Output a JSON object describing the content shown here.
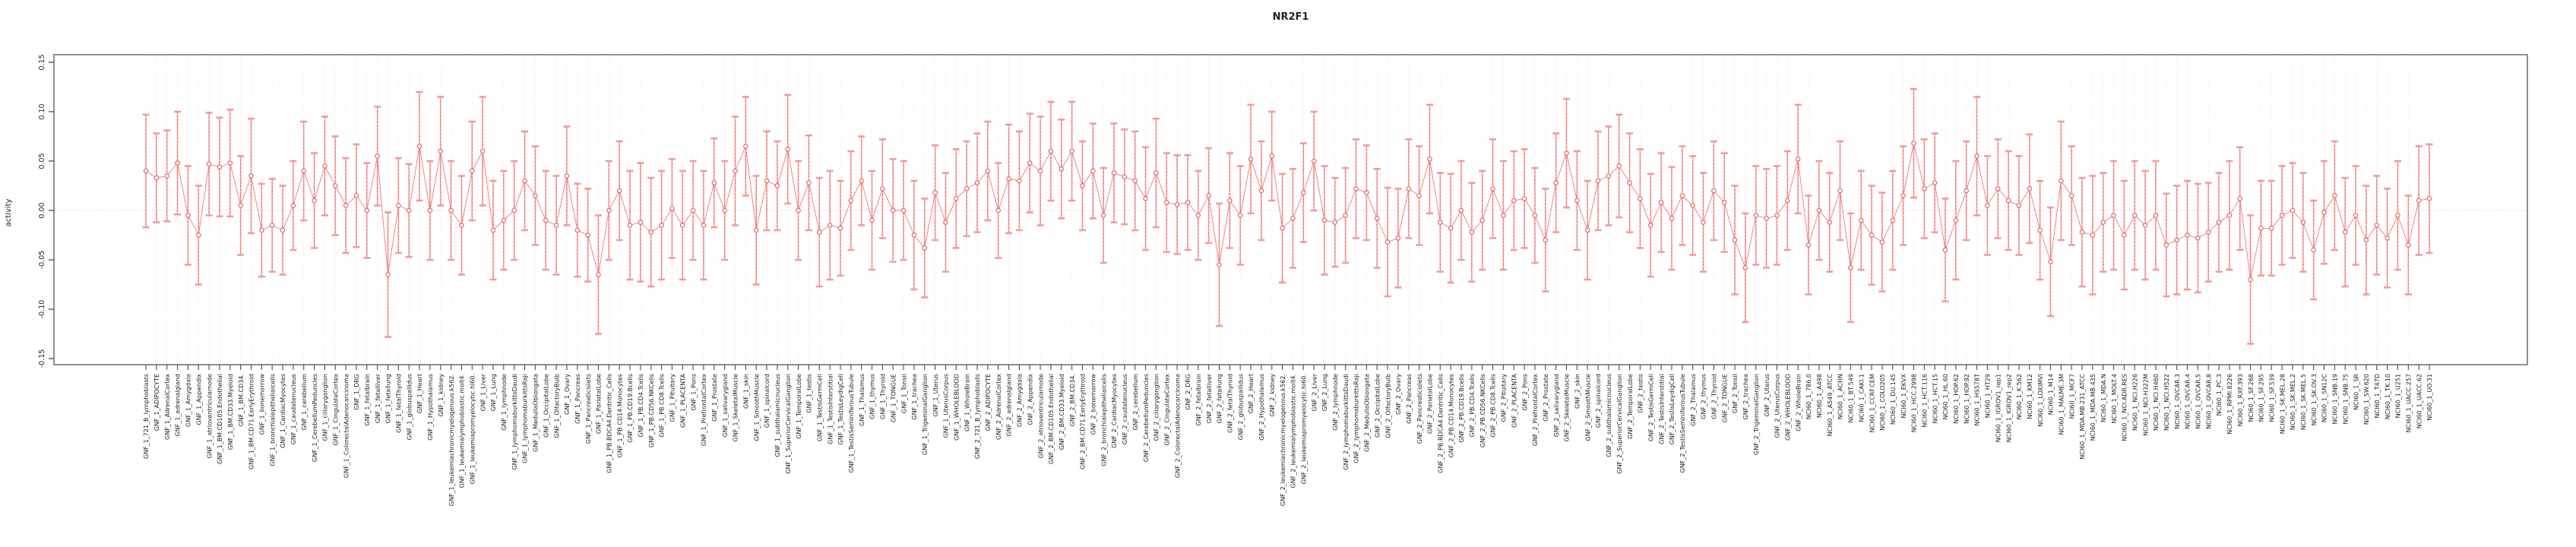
{
  "title": "NR2F1",
  "y_axis": {
    "label": "activity",
    "tick_labels": [
      "-0.15",
      "-0.10",
      "-0.05",
      "0.00",
      "0.05",
      "0.10",
      "0.15"
    ],
    "tick_values": [
      -0.15,
      -0.1,
      -0.05,
      0.0,
      0.05,
      0.1,
      0.15
    ]
  },
  "chart_data": {
    "type": "scatter",
    "subtype": "point-with-confidence-interval-errorbars",
    "title": "NR2F1",
    "xlabel": "",
    "ylabel": "activity",
    "ylim": [
      -0.157,
      0.158
    ],
    "grid": "dotted vertical gridline per category, dotted horizontal line at zero",
    "legend_position": "none",
    "categories": [
      "GNF_1_721_B_lymphoblasts",
      "GNF_1_ADIPOCYTE",
      "GNF_1_AdrenalCortex",
      "GNF_1_adrenalgland",
      "GNF_1_Amygdala",
      "GNF_1_Appendix",
      "GNF_1_atrioventricularnode",
      "GNF_1_BM.CD105.Endothelial",
      "GNF_1_BM.CD33.Myeloid",
      "GNF_1_BM.CD34.",
      "GNF_1_BM.CD71.EarlyErythroid",
      "GNF_1_bonemarrow",
      "GNF_1_bronchialepithelialcells",
      "GNF_1_CardiacMyocytes",
      "GNF_1_caudatenucleus",
      "GNF_1_cerebellum",
      "GNF_1_CerebellumPeduncles",
      "GNF_1_ciliaryganglion",
      "GNF_1_CingulateCortex",
      "GNF_1_ColorectalAdenocarcinoma",
      "GNF_1_DRG",
      "GNF_1_fetalbrain",
      "GNF_1_fetalliver",
      "GNF_1_fetallung",
      "GNF_1_fetalThyroid",
      "GNF_1_globuspallidus",
      "GNF_1_Heart",
      "GNF_1_Hypothalamus",
      "GNF_1_kidney",
      "GNF_1_leukemiachronicmyelogenous.k562.",
      "GNF_1_leukemialymphoblastic.molt4.",
      "GNF_1_leukemiapromyelocytic.hl60.",
      "GNF_1_Liver",
      "GNF_1_Lung",
      "GNF_1_lymphnode",
      "GNF_1_lymphomaburkittsDaudi",
      "GNF_1_lymphomaburkittsRaji",
      "GNF_1_MedullaOblongata",
      "GNF_1_OccipitalLobe",
      "GNF_1_OlfactoryBulb",
      "GNF_1_Ovary",
      "GNF_1_Pancreas",
      "GNF_1_Pancreaticislets",
      "GNF_1_ParietalLobe",
      "GNF_1_PB.BDCA4.Dentritic_Cells",
      "GNF_1_PB.CD14.Monocytes",
      "GNF_1_PB.CD19.Bcells",
      "GNF_1_PB.CD4.Tcells",
      "GNF_1_PB.CD56.NKCells",
      "GNF_1_PB.CD8.Tcells",
      "GNF_1_Pituitary",
      "GNF_1_PLACENTA",
      "GNF_1_Pons",
      "GNF_1_PrefrontalCortex",
      "GNF_1_Prostate",
      "GNF_1_salivarygland",
      "GNF_1_SkeletalMuscle",
      "GNF_1_skin",
      "GNF_1_SmoothMuscle",
      "GNF_1_spinalcord",
      "GNF_1_subthalamicnucleus",
      "GNF_1_SuperiorCervicalGanglion",
      "GNF_1_TemporalLobe",
      "GNF_1_testis",
      "GNF_1_TestisGermCell",
      "GNF_1_TestisInterstitial",
      "GNF_1_TestisLeydigCell",
      "GNF_1_TestisSeminiferousTubule",
      "GNF_1_Thalamus",
      "GNF_1_thymus",
      "GNF_1_Thyroid",
      "GNF_1_TONGUE",
      "GNF_1_Tonsil",
      "GNF_1_trachea",
      "GNF_1_TrigeminalGanglion",
      "GNF_1_Uterus",
      "GNF_1_UterusCorpus",
      "GNF_1_WHOLEBLOOD",
      "GNF_1_WholeBrain",
      "GNF_2_721_B_lymphoblasts",
      "GNF_2_ADIPOCYTE",
      "GNF_2_AdrenalCortex",
      "GNF_2_adrenalgland",
      "GNF_2_Amygdala",
      "GNF_2_Appendix",
      "GNF_2_atrioventricularnode",
      "GNF_2_BM.CD105.Endothelial",
      "GNF_2_BM.CD33.Myeloid",
      "GNF_2_BM.CD34.",
      "GNF_2_BM.CD71.EarlyErythroid",
      "GNF_2_bonemarrow",
      "GNF_2_bronchialepithelialcells",
      "GNF_2_CardiacMyocytes",
      "GNF_2_caudatenucleus",
      "GNF_2_cerebellum",
      "GNF_2_CerebellumPeduncles",
      "GNF_2_ciliaryganglion",
      "GNF_2_CingulateCortex",
      "GNF_2_ColorectalAdenocarcinoma",
      "GNF_2_DRG",
      "GNF_2_fetalbrain",
      "GNF_2_fetalliver",
      "GNF_2_fetallung",
      "GNF_2_fetalThyroid",
      "GNF_2_globuspallidus",
      "GNF_2_Heart",
      "GNF_2_Hypothalamus",
      "GNF_2_kidney",
      "GNF_2_leukemiachronicmyelogenous.k562.",
      "GNF_2_leukemialymphoblastic.molt4.",
      "GNF_2_leukemiapromyelocytic.hl60.",
      "GNF_2_Liver",
      "GNF_2_Lung",
      "GNF_2_lymphnode",
      "GNF_2_lymphomaburkittsDaudi",
      "GNF_2_lymphomaburkittsRaji",
      "GNF_2_MedullaOblongata",
      "GNF_2_OccipitalLobe",
      "GNF_2_OlfactoryBulb",
      "GNF_2_Ovary",
      "GNF_2_Pancreas",
      "GNF_2_Pancreaticislets",
      "GNF_2_ParietalLobe",
      "GNF_2_PB.BDCA4.Dentritic_Cells",
      "GNF_2_PB.CD14.Monocytes",
      "GNF_2_PB.CD19.Bcells",
      "GNF_2_PB.CD4.Tcells",
      "GNF_2_PB.CD56.NKCells",
      "GNF_2_PB.CD8.Tcells",
      "GNF_2_Pituitary",
      "GNF_2_PLACENTA",
      "GNF_2_Pons",
      "GNF_2_PrefrontalCortex",
      "GNF_2_Prostate",
      "GNF_2_salivarygland",
      "GNF_2_SkeletalMuscle",
      "GNF_2_skin",
      "GNF_2_SmoothMuscle",
      "GNF_2_spinalcord",
      "GNF_2_subthalamicnucleus",
      "GNF_2_SuperiorCervicalGanglion",
      "GNF_2_TemporalLobe",
      "GNF_2_testis",
      "GNF_2_TestisGermCell",
      "GNF_2_TestisInterstitial",
      "GNF_2_TestisLeydigCell",
      "GNF_2_TestisSeminiferousTubule",
      "GNF_2_Thalamus",
      "GNF_2_thymus",
      "GNF_2_Thyroid",
      "GNF_2_TONGUE",
      "GNF_2_Tonsil",
      "GNF_2_trachea",
      "GNF_2_TrigeminalGanglion",
      "GNF_2_Uterus",
      "GNF_2_UterusCorpus",
      "GNF_2_WHOLEBLOOD",
      "GNF_2_WholeBrain",
      "NCI60_1_786.0",
      "NCI60_1_A498",
      "NCI60_1_A549_ATCC",
      "NCI60_1_ACHN",
      "NCI60_1_BT.549",
      "NCI60_1_CAKI.1",
      "NCI60_1_CCRF.CEM",
      "NCI60_1_COLO205",
      "NCI60_1_DU.145",
      "NCI60_1_EKVX",
      "NCI60_1_HCC.2998",
      "NCI60_1_HCT.116",
      "NCI60_1_HCT.15",
      "NCI60_1_HL.60",
      "NCI60_1_HOP.62",
      "NCI60_1_HOP.92",
      "NCI60_1_HS578T",
      "NCI60_1_HT29",
      "NCI60_1_IGROV1_rep1",
      "NCI60_1_IGROV1_rep2",
      "NCI60_1_K.562",
      "NCI60_1_KM12",
      "NCI60_1_LOXIMVI",
      "NCI60_1_M14",
      "NCI60_1_MALME.3M",
      "NCI60_1_MCF7",
      "NCI60_1_MDA.MB.231_ATCC",
      "NCI60_1_MDA.MB.435",
      "NCI60_1_MDA.N",
      "NCI60_1_MOLT.4",
      "NCI60_1_NCI.ADR.RES",
      "NCI60_1_NCI.H226",
      "NCI60_1_NCI.H322M",
      "NCI60_1_NCI.H460",
      "NCI60_1_NCI.H522",
      "NCI60_1_OVCAR.3",
      "NCI60_1_OVCAR.4",
      "NCI60_1_OVCAR.5",
      "NCI60_1_OVCAR.8",
      "NCI60_1_PC.3",
      "NCI60_1_RPMI.8226",
      "NCI60_1_RXF.393",
      "NCI60_1_SF.268",
      "NCI60_1_SF.295",
      "NCI60_1_SF.539",
      "NCI60_1_SK.MEL.28",
      "NCI60_1_SK.MEL.2",
      "NCI60_1_SK.MEL.5",
      "NCI60_1_SK.OV.3",
      "NCI60_1_SN12C",
      "NCI60_1_SNB.19",
      "NCI60_1_SNB.75",
      "NCI60_1_SR",
      "NCI60_1_SW.620",
      "NCI60_1_T47D",
      "NCI60_1_TK.10",
      "NCI60_1_U251",
      "NCI60_1_UACC.257",
      "NCI60_1_UACC.62",
      "NCI60_1_UO.31"
    ],
    "series": [
      {
        "name": "activity",
        "values": [
          0.04,
          0.033,
          0.035,
          0.048,
          -0.005,
          -0.025,
          0.047,
          0.044,
          0.048,
          0.005,
          0.035,
          -0.02,
          -0.015,
          -0.02,
          0.005,
          0.04,
          0.01,
          0.045,
          0.025,
          0.005,
          0.015,
          0.0,
          0.055,
          -0.065,
          0.005,
          0.0,
          0.065,
          0.0,
          0.06,
          0.0,
          -0.015,
          0.04,
          0.06,
          -0.02,
          -0.01,
          0.0,
          0.03,
          0.015,
          -0.01,
          -0.015,
          0.035,
          -0.02,
          -0.025,
          -0.065,
          0.0,
          0.02,
          -0.015,
          -0.012,
          -0.022,
          -0.015,
          0.002,
          -0.015,
          0.0,
          -0.015,
          0.028,
          0.0,
          0.04,
          0.065,
          -0.02,
          0.03,
          0.025,
          0.062,
          0.0,
          0.028,
          -0.022,
          -0.015,
          -0.018,
          0.01,
          0.03,
          -0.01,
          0.022,
          0.0,
          0.0,
          -0.025,
          -0.038,
          0.018,
          -0.012,
          0.012,
          0.022,
          0.028,
          0.04,
          0.0,
          0.032,
          0.03,
          0.048,
          0.04,
          0.06,
          0.042,
          0.06,
          0.025,
          0.04,
          -0.005,
          0.038,
          0.034,
          0.03,
          0.012,
          0.038,
          0.008,
          0.006,
          0.008,
          -0.005,
          0.015,
          -0.055,
          0.01,
          -0.005,
          0.052,
          0.02,
          0.055,
          -0.018,
          -0.008,
          0.018,
          0.05,
          -0.01,
          -0.012,
          -0.005,
          0.022,
          0.018,
          -0.008,
          -0.032,
          -0.028,
          0.022,
          0.015,
          0.052,
          -0.012,
          -0.018,
          0.0,
          -0.022,
          -0.01,
          0.022,
          -0.005,
          0.01,
          0.012,
          -0.005,
          -0.03,
          0.028,
          0.058,
          0.01,
          -0.02,
          0.03,
          0.035,
          0.045,
          0.028,
          0.012,
          -0.015,
          0.008,
          -0.008,
          0.015,
          0.005,
          -0.012,
          0.02,
          0.008,
          -0.03,
          -0.058,
          -0.005,
          -0.008,
          -0.005,
          0.01,
          0.052,
          -0.035,
          0.0,
          -0.012,
          0.02,
          -0.058,
          -0.01,
          -0.025,
          -0.032,
          -0.01,
          0.015,
          0.068,
          0.022,
          0.028,
          -0.04,
          -0.01,
          0.02,
          0.055,
          0.005,
          0.022,
          0.01,
          0.005,
          0.022,
          -0.02,
          -0.052,
          0.03,
          0.015,
          -0.022,
          -0.025,
          -0.012,
          -0.005,
          -0.025,
          -0.005,
          -0.015,
          -0.005,
          -0.035,
          -0.03,
          -0.025,
          -0.028,
          -0.022,
          -0.012,
          -0.005,
          0.012,
          -0.07,
          -0.018,
          -0.018,
          -0.005,
          0.0,
          -0.012,
          -0.04,
          -0.002,
          0.015,
          -0.022,
          -0.005,
          -0.03,
          -0.015,
          -0.028,
          -0.005,
          -0.035,
          0.01,
          0.012
        ],
        "ci_halfwidth": [
          0.057,
          0.045,
          0.046,
          0.052,
          0.05,
          0.05,
          0.052,
          0.05,
          0.054,
          0.05,
          0.058,
          0.047,
          0.047,
          0.045,
          0.045,
          0.05,
          0.048,
          0.05,
          0.05,
          0.048,
          0.052,
          0.048,
          0.05,
          0.063,
          0.048,
          0.047,
          0.055,
          0.05,
          0.055,
          0.05,
          0.05,
          0.05,
          0.055,
          0.05,
          0.05,
          0.05,
          0.05,
          0.05,
          0.05,
          0.05,
          0.05,
          0.047,
          0.047,
          0.06,
          0.05,
          0.05,
          0.055,
          0.06,
          0.055,
          0.055,
          0.05,
          0.055,
          0.05,
          0.055,
          0.045,
          0.05,
          0.055,
          0.05,
          0.055,
          0.05,
          0.045,
          0.055,
          0.05,
          0.048,
          0.055,
          0.055,
          0.048,
          0.05,
          0.045,
          0.05,
          0.05,
          0.052,
          0.05,
          0.055,
          0.05,
          0.048,
          0.05,
          0.05,
          0.048,
          0.05,
          0.05,
          0.048,
          0.055,
          0.05,
          0.05,
          0.055,
          0.05,
          0.05,
          0.05,
          0.045,
          0.048,
          0.048,
          0.05,
          0.048,
          0.05,
          0.052,
          0.055,
          0.05,
          0.05,
          0.048,
          0.045,
          0.048,
          0.062,
          0.048,
          0.05,
          0.055,
          0.05,
          0.045,
          0.055,
          0.05,
          0.05,
          0.05,
          0.055,
          0.045,
          0.048,
          0.05,
          0.048,
          0.05,
          0.055,
          0.05,
          0.05,
          0.05,
          0.055,
          0.05,
          0.055,
          0.05,
          0.05,
          0.05,
          0.05,
          0.055,
          0.05,
          0.05,
          0.048,
          0.052,
          0.05,
          0.055,
          0.05,
          0.05,
          0.05,
          0.05,
          0.052,
          0.05,
          0.05,
          0.052,
          0.05,
          0.052,
          0.05,
          0.05,
          0.05,
          0.05,
          0.05,
          0.055,
          0.055,
          0.05,
          0.05,
          0.05,
          0.05,
          0.055,
          0.05,
          0.05,
          0.05,
          0.05,
          0.055,
          0.05,
          0.05,
          0.05,
          0.05,
          0.05,
          0.055,
          0.05,
          0.05,
          0.052,
          0.06,
          0.05,
          0.06,
          0.05,
          0.05,
          0.05,
          0.05,
          0.055,
          0.05,
          0.055,
          0.06,
          0.05,
          0.055,
          0.06,
          0.05,
          0.055,
          0.055,
          0.055,
          0.055,
          0.055,
          0.052,
          0.055,
          0.055,
          0.055,
          0.05,
          0.05,
          0.055,
          0.052,
          0.065,
          0.048,
          0.048,
          0.05,
          0.048,
          0.05,
          0.05,
          0.052,
          0.055,
          0.055,
          0.05,
          0.055,
          0.05,
          0.05,
          0.055,
          0.05,
          0.055,
          0.055
        ]
      }
    ]
  },
  "colors": {
    "whisker_solid": "#f7a8a8",
    "whisker_cap": "#f49a9a",
    "stem_dashed": "#ee6666",
    "connect_line": "#ef7878",
    "point_stroke": "#e65c5c",
    "point_fill": "#ffffff",
    "gridline": "#e3e3e3",
    "zero_line": "#c9c9c9",
    "frame": "#848484",
    "tick": "#4a4a4a",
    "text": "#1f1f1f"
  }
}
